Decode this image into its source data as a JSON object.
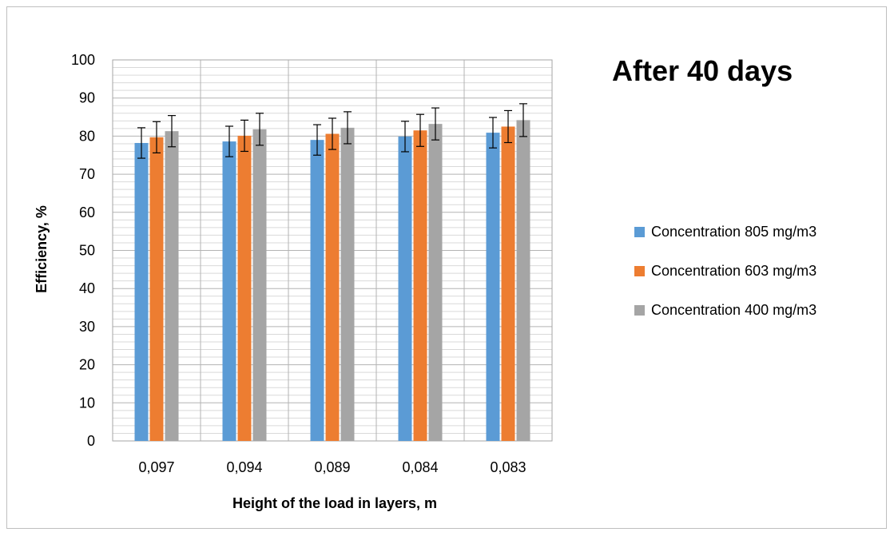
{
  "chart_data": {
    "type": "bar",
    "title": "After 40 days",
    "xlabel": "Height of the load in layers, m",
    "ylabel": "Efficiency, %",
    "categories": [
      "0,097",
      "0,094",
      "0,089",
      "0,084",
      "0,083"
    ],
    "ylim": [
      0,
      100
    ],
    "yticks": [
      0,
      10,
      20,
      30,
      40,
      50,
      60,
      70,
      80,
      90,
      100
    ],
    "grid": true,
    "legend_position": "right",
    "series": [
      {
        "name": "Concentration 805 mg/m3",
        "color": "#5b9bd5",
        "values": [
          78.2,
          78.6,
          79.0,
          79.9,
          80.9
        ],
        "error": [
          4.0,
          4.0,
          4.0,
          4.0,
          4.0
        ]
      },
      {
        "name": "Concentration 603 mg/m3",
        "color": "#ed7d31",
        "values": [
          79.7,
          80.1,
          80.6,
          81.5,
          82.5
        ],
        "error": [
          4.1,
          4.1,
          4.1,
          4.2,
          4.2
        ]
      },
      {
        "name": "Concentration 400 mg/m3",
        "color": "#a5a5a5",
        "values": [
          81.3,
          81.8,
          82.2,
          83.2,
          84.2
        ],
        "error": [
          4.1,
          4.2,
          4.2,
          4.2,
          4.3
        ]
      }
    ]
  }
}
